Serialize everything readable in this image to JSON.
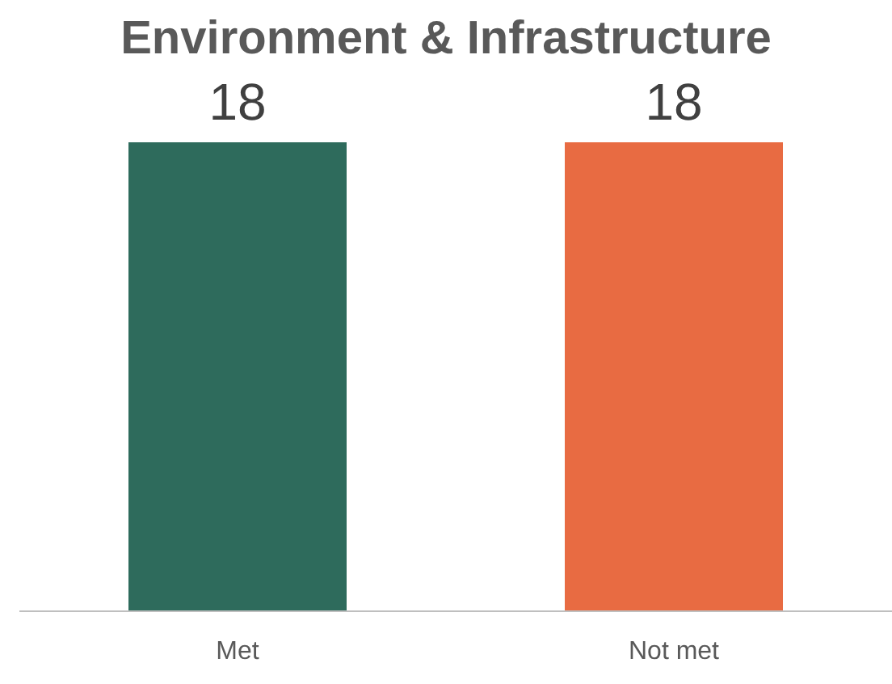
{
  "chart_data": {
    "type": "bar",
    "title": "Environment & Infrastructure",
    "categories": [
      "Met",
      "Not met"
    ],
    "values": [
      18,
      18
    ],
    "colors": [
      "#2e6b5c",
      "#e86b42"
    ],
    "data_labels": true,
    "grid": false,
    "legend": false
  }
}
